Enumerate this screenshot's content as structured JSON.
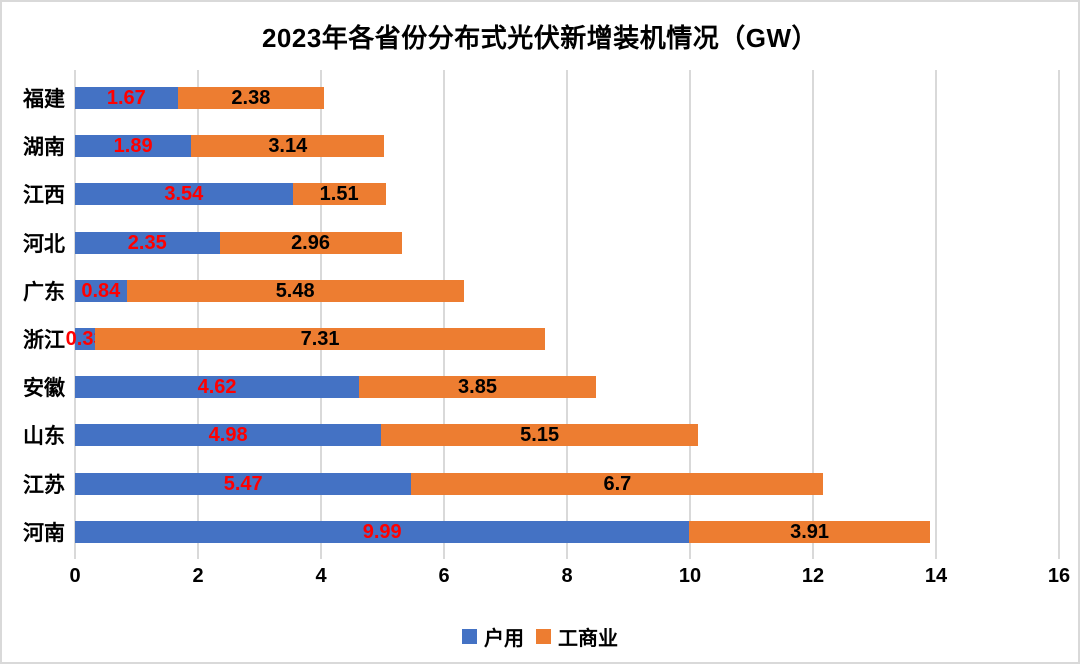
{
  "title": "2023年各省份分布式光伏新增装机情况（GW）",
  "colors": {
    "series_household": "#4472C4",
    "series_commercial": "#ED7D31",
    "label_on_household": "#FF0000",
    "label_on_commercial": "#000000",
    "gridline": "#D9D9D9",
    "frame_border": "#D9D9D9",
    "background": "#FFFFFF"
  },
  "legend": {
    "position": "bottom",
    "items": [
      {
        "label": "户用",
        "color": "#4472C4"
      },
      {
        "label": "工商业",
        "color": "#ED7D31"
      }
    ]
  },
  "chart_data": {
    "type": "bar",
    "orientation": "horizontal",
    "stacked": true,
    "title": "2023年各省份分布式光伏新增装机情况（GW）",
    "categories": [
      "福建",
      "湖南",
      "江西",
      "河北",
      "广东",
      "浙江",
      "安徽",
      "山东",
      "江苏",
      "河南"
    ],
    "series": [
      {
        "name": "户用",
        "color": "#4472C4",
        "label_color": "#FF0000",
        "values": [
          1.67,
          1.89,
          3.54,
          2.35,
          0.84,
          0.33,
          4.62,
          4.98,
          5.47,
          9.99
        ]
      },
      {
        "name": "工商业",
        "color": "#ED7D31",
        "label_color": "#000000",
        "values": [
          2.38,
          3.14,
          1.51,
          2.96,
          5.48,
          7.31,
          3.85,
          5.15,
          6.7,
          3.91
        ]
      }
    ],
    "xlabel": "",
    "ylabel": "",
    "xlim": [
      0,
      16
    ],
    "x_ticks": [
      0,
      2,
      4,
      6,
      8,
      10,
      12,
      14,
      16
    ],
    "grid": true,
    "legend_position": "bottom"
  }
}
